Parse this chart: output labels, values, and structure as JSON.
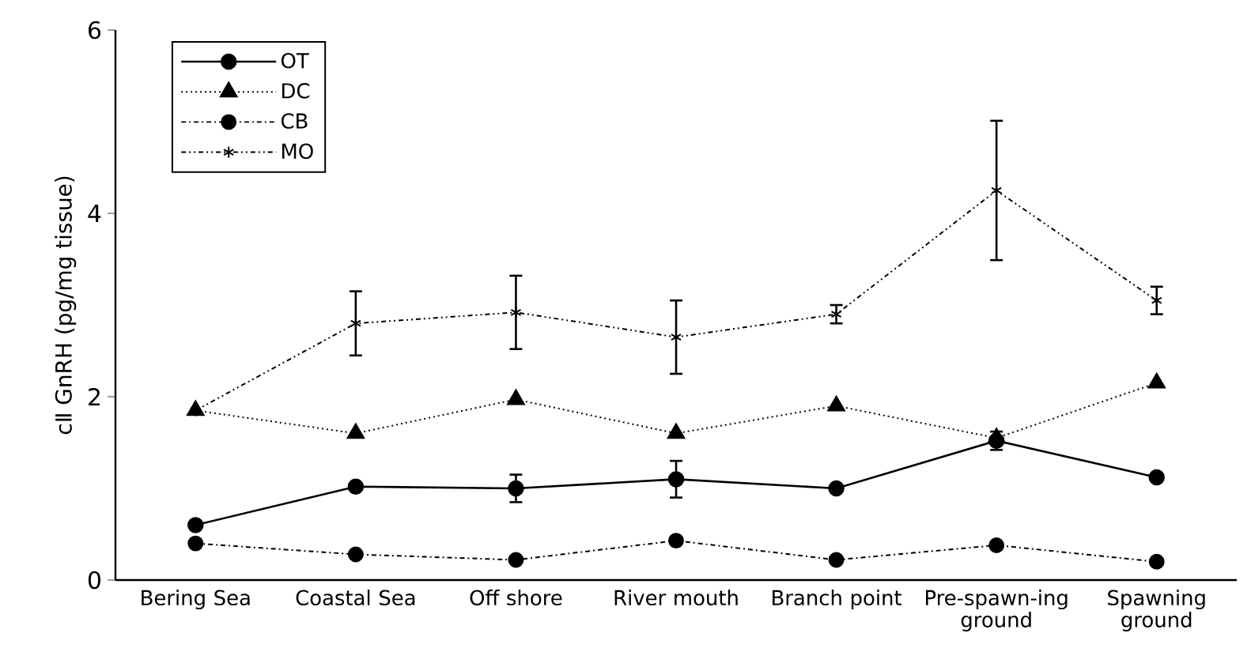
{
  "chart_data": {
    "type": "line",
    "ylabel": "cⅡ GnRH (pg/mg tissue)",
    "categories": [
      "Bering Sea",
      "Coastal Sea",
      "Off shore",
      "River mouth",
      "Branch point",
      "Pre-spawn-ing ground",
      "Spawning ground"
    ],
    "ylim": [
      0,
      6
    ],
    "yticks": [
      0,
      2,
      4,
      6
    ],
    "legend": "top left",
    "grid": false,
    "series": [
      {
        "name": "OT",
        "color": "#000000",
        "marker": "circle",
        "line_style": "solid",
        "values": [
          0.6,
          1.02,
          1.0,
          1.1,
          1.0,
          1.52,
          1.12
        ],
        "errors": [
          null,
          null,
          0.15,
          0.2,
          null,
          0.1,
          null
        ]
      },
      {
        "name": "DC",
        "color": "#000000",
        "marker": "triangle",
        "line_style": "dotted",
        "values": [
          1.85,
          1.6,
          1.97,
          1.6,
          1.9,
          1.55,
          2.15
        ]
      },
      {
        "name": "CB",
        "color": "#000000",
        "marker": "circle",
        "line_style": "dashdotted",
        "values": [
          0.4,
          0.28,
          0.22,
          0.43,
          0.22,
          0.38,
          0.2
        ]
      },
      {
        "name": "MO",
        "color": "#000000",
        "marker": "cross",
        "line_style": "dashdotdotted",
        "values": [
          1.85,
          2.8,
          2.92,
          2.65,
          2.9,
          4.25,
          3.05
        ],
        "errors": [
          null,
          0.35,
          0.4,
          0.4,
          0.1,
          0.76,
          0.15
        ]
      }
    ]
  }
}
